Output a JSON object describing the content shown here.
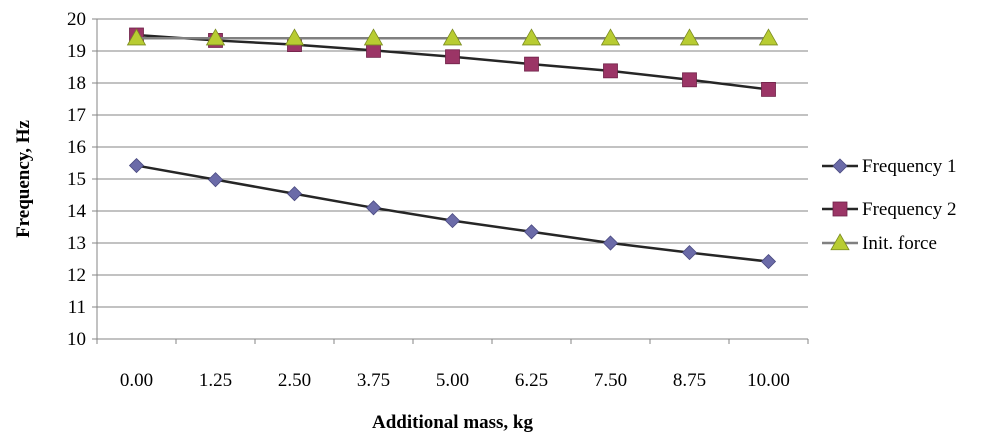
{
  "chart_data": {
    "type": "line",
    "title": "",
    "xlabel": "Additional mass, kg",
    "ylabel": "Frequency, Hz",
    "categories": [
      "0.00",
      "1.25",
      "2.50",
      "3.75",
      "5.00",
      "6.25",
      "7.50",
      "8.75",
      "10.00"
    ],
    "ylim": [
      10,
      20
    ],
    "yticks": [
      "10",
      "11",
      "12",
      "13",
      "14",
      "15",
      "16",
      "17",
      "18",
      "19",
      "20"
    ],
    "grid": "horizontal",
    "legend_position": "right",
    "series": [
      {
        "name": "Frequency 1",
        "marker": "diamond",
        "marker_color": "#6B6BA8",
        "line_color": "#262626",
        "values": [
          15.42,
          14.98,
          14.54,
          14.1,
          13.7,
          13.35,
          13.0,
          12.7,
          12.42
        ],
        "markers": [
          true,
          true,
          true,
          true,
          true,
          true,
          true,
          true,
          true
        ]
      },
      {
        "name": "Frequency 2",
        "marker": "square",
        "marker_color": "#9B3566",
        "line_color": "#262626",
        "values": [
          19.5,
          19.33,
          19.2,
          19.02,
          18.82,
          18.59,
          18.38,
          18.1,
          17.8
        ],
        "markers": [
          true,
          true,
          true,
          true,
          true,
          true,
          true,
          true,
          true
        ]
      },
      {
        "name": "Init. force",
        "marker": "triangle",
        "marker_color": "#B8CC32",
        "line_color": "#808080",
        "values": [
          19.4,
          19.4,
          19.4,
          19.4,
          19.4,
          19.4,
          19.4,
          19.4,
          19.4
        ],
        "markers": [
          true,
          true,
          true,
          true,
          true,
          true,
          true,
          true,
          true
        ]
      }
    ]
  }
}
